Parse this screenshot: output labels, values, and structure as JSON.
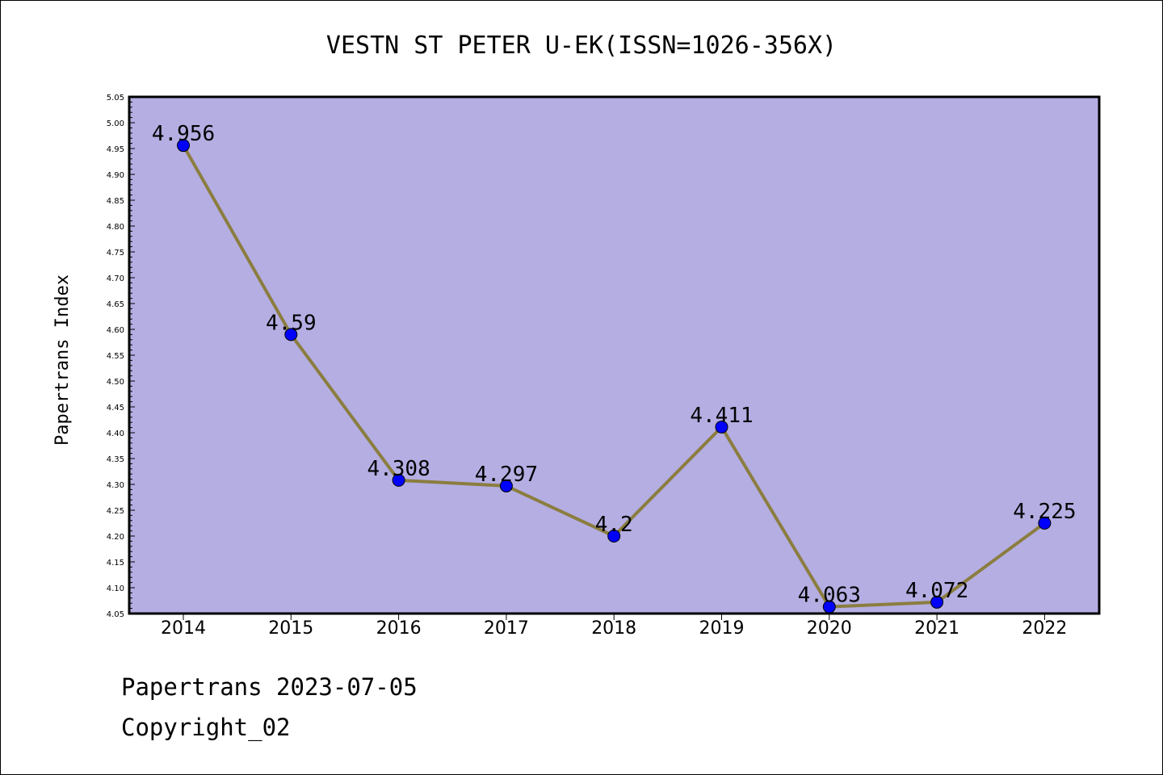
{
  "chart_data": {
    "type": "line",
    "title": "VESTN ST PETER U-EK(ISSN=1026-356X)",
    "xlabel": "",
    "ylabel": "Papertrans Index",
    "categories": [
      "2014",
      "2015",
      "2016",
      "2017",
      "2018",
      "2019",
      "2020",
      "2021",
      "2022"
    ],
    "series": [
      {
        "values": [
          4.956,
          4.59,
          4.308,
          4.297,
          4.2,
          4.411,
          4.063,
          4.072,
          4.225
        ],
        "labels": [
          "4.956",
          "4.59",
          "4.308",
          "4.297",
          "4.2",
          "4.411",
          "4.063",
          "4.072",
          "4.225"
        ]
      }
    ],
    "ylim": [
      4.05,
      5.05
    ],
    "yticks": [
      "4.05",
      "4.10",
      "4.15",
      "4.20",
      "4.25",
      "4.30",
      "4.35",
      "4.40",
      "4.45",
      "4.50",
      "4.55",
      "4.60",
      "4.65",
      "4.70",
      "4.75",
      "4.80",
      "4.85",
      "4.90",
      "4.95",
      "5.00",
      "5.05"
    ],
    "grid": false,
    "legend": "none",
    "colors": {
      "plot_background": "#b4aee3",
      "line": "#8b7d3f",
      "marker": "#0000ff"
    }
  },
  "footer": {
    "line1": "Papertrans 2023-07-05",
    "line2": "Copyright_02"
  }
}
